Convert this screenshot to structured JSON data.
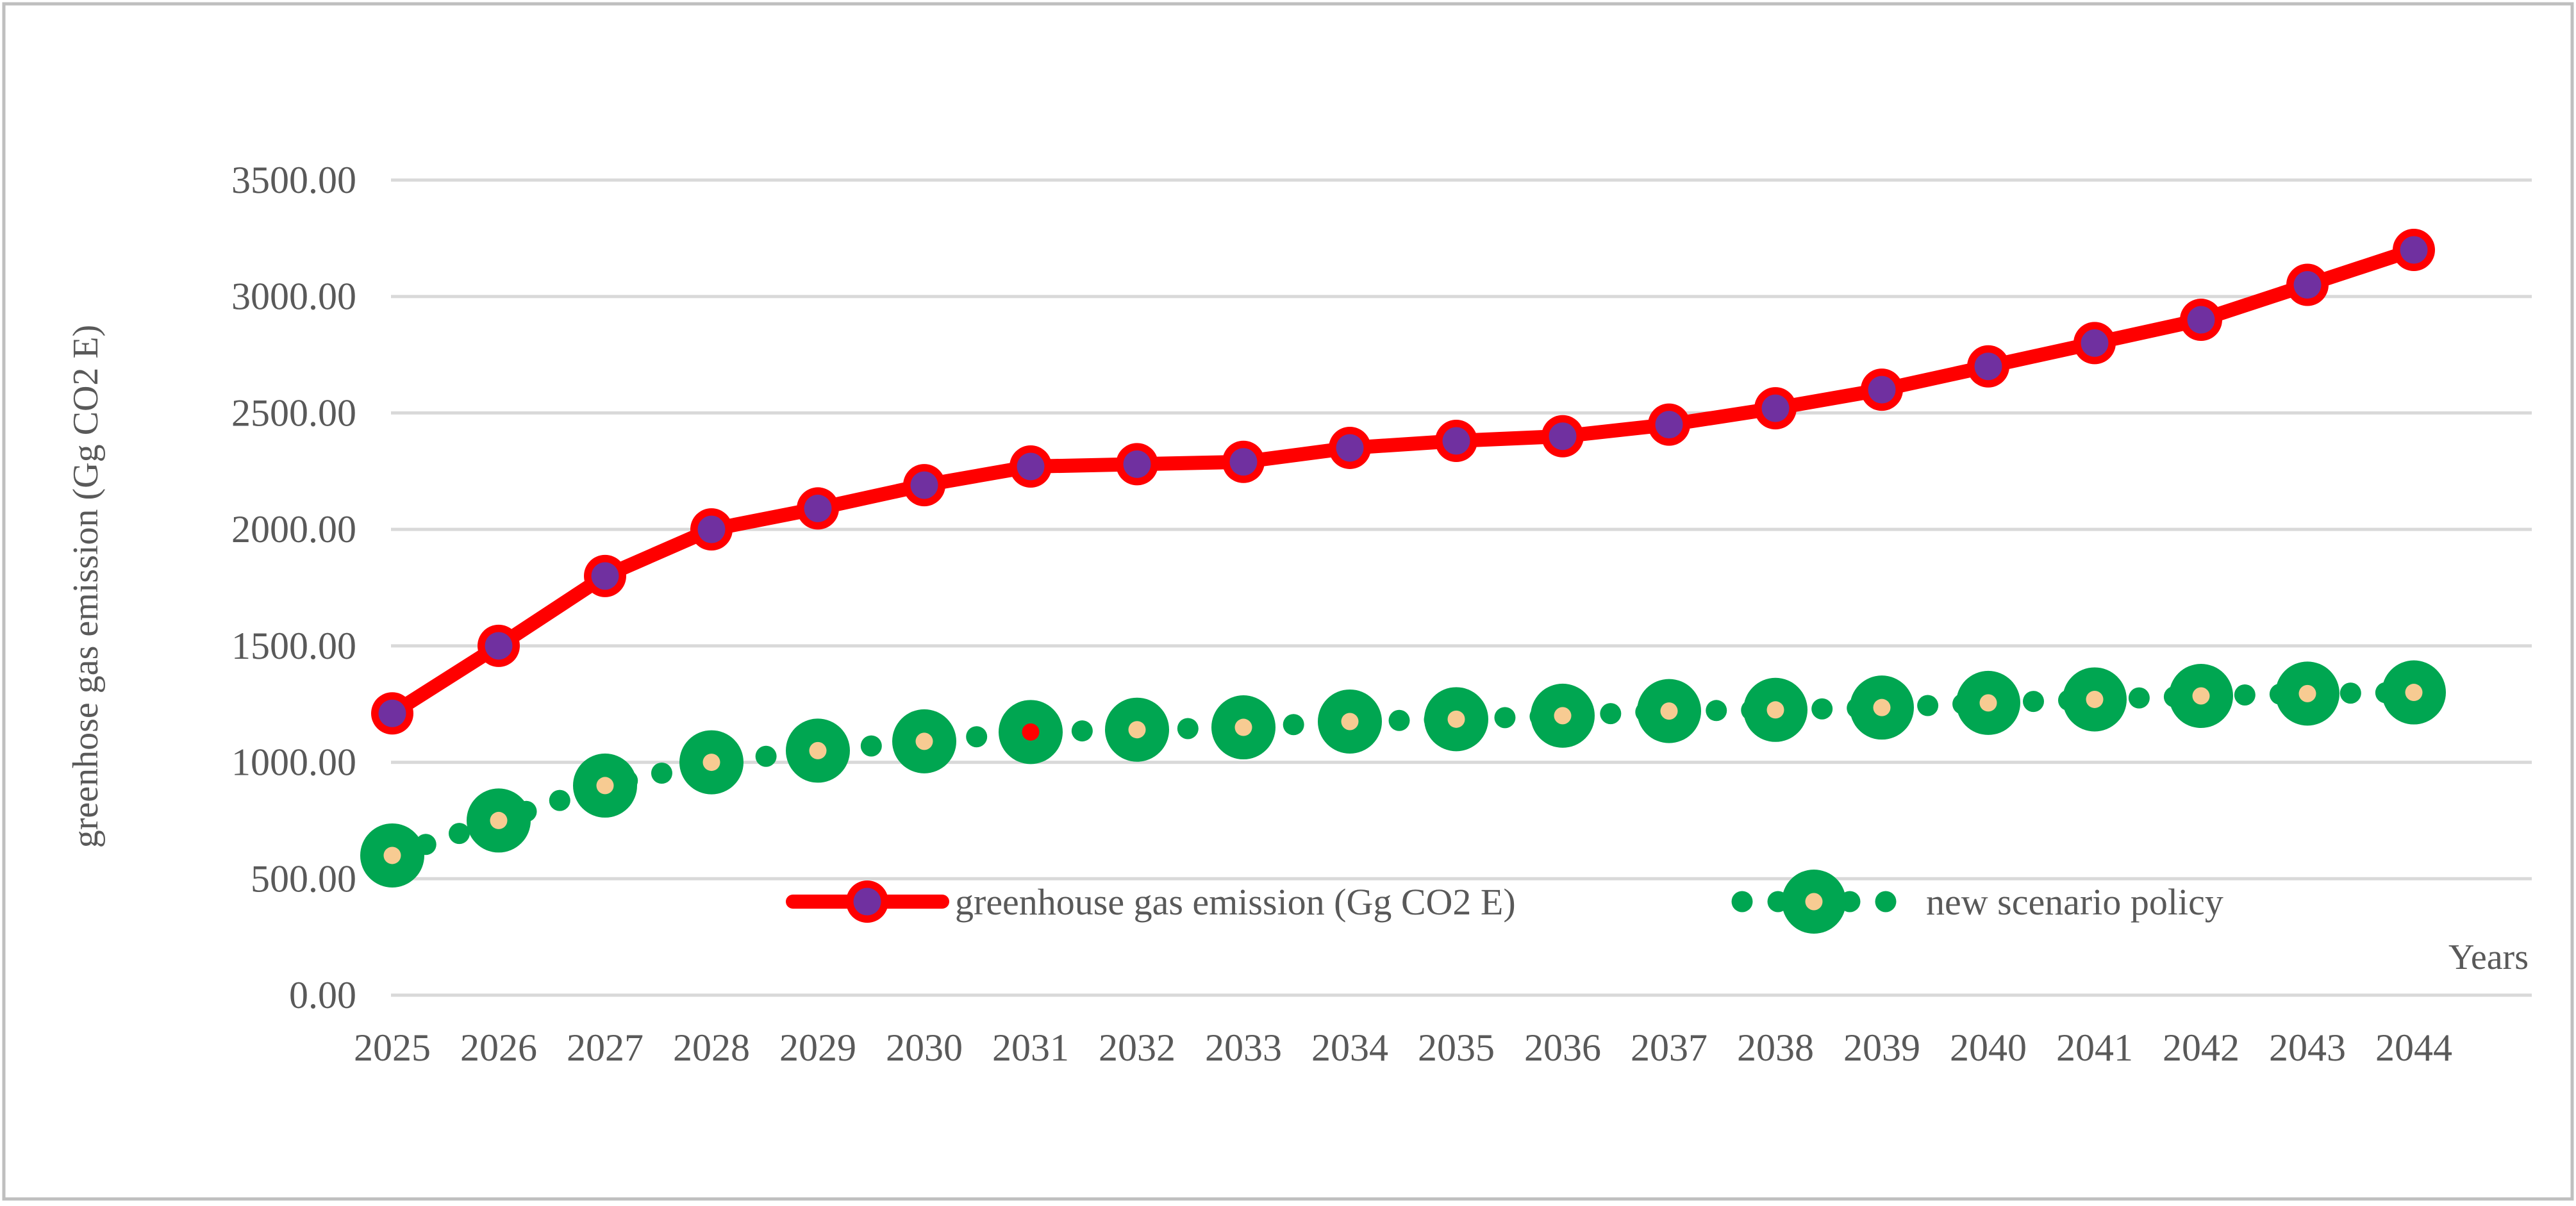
{
  "chart_data": {
    "type": "line",
    "title": "",
    "xlabel": "Years",
    "ylabel": "greenhose gas emission (Gg CO2 E)",
    "categories": [
      "2025",
      "2026",
      "2027",
      "2028",
      "2029",
      "2030",
      "2031",
      "2032",
      "2033",
      "2034",
      "2035",
      "2036",
      "2037",
      "2038",
      "2039",
      "2040",
      "2041",
      "2042",
      "2043",
      "2044"
    ],
    "y_axis": {
      "min": 0,
      "max": 3500,
      "step": 500,
      "tick_values": [
        0,
        500,
        1000,
        1500,
        2000,
        2500,
        3000,
        3500
      ],
      "tick_labels": [
        "0.00",
        "500.00",
        "1000.00",
        "1500.00",
        "2000.00",
        "2500.00",
        "3000.00",
        "3500.00"
      ]
    },
    "grid": true,
    "legend_position": "inside-bottom",
    "series": [
      {
        "name": "greenhouse gas emission (Gg CO2 E)",
        "style": "solid",
        "color": "#FF0000",
        "marker_edge": "#FF0000",
        "marker_fill": "#7030A0",
        "values": [
          1210,
          1500,
          1800,
          2000,
          2090,
          2190,
          2270,
          2280,
          2290,
          2350,
          2380,
          2400,
          2450,
          2520,
          2600,
          2700,
          2800,
          2900,
          3050,
          3200
        ]
      },
      {
        "name": "new scenario policy",
        "style": "dotted",
        "color": "#00A651",
        "marker_edge": "#00A651",
        "marker_fill": "#00A651",
        "marker_center": "#F7CB92",
        "special_point": {
          "index": 6,
          "center_color": "#FF0000"
        },
        "values": [
          600,
          750,
          900,
          1000,
          1050,
          1090,
          1130,
          1140,
          1150,
          1175,
          1185,
          1200,
          1220,
          1225,
          1235,
          1255,
          1270,
          1285,
          1295,
          1300
        ]
      }
    ]
  },
  "colors": {
    "grid": "#D9D9D9",
    "axis_text": "#595959",
    "border": "#BFBFBF",
    "background": "#FFFFFF"
  }
}
